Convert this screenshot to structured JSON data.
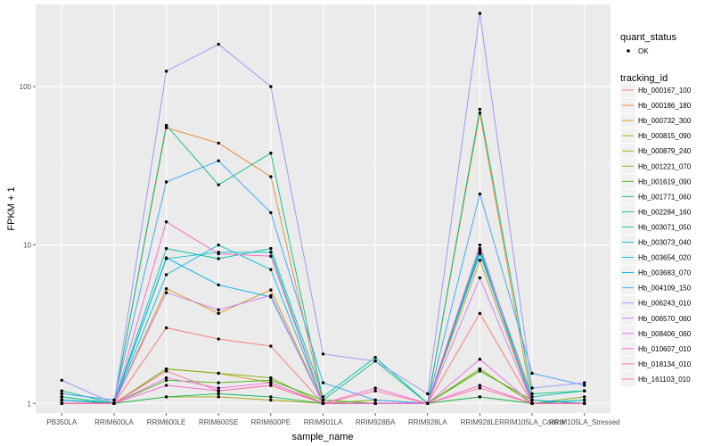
{
  "chart_data": {
    "type": "line",
    "xlabel": "sample_name",
    "ylabel": "FPKM + 1",
    "y_scale": "log10",
    "ylim": [
      0.87,
      330
    ],
    "y_ticks": [
      {
        "value": 1,
        "label": "1"
      },
      {
        "value": 10,
        "label": "10"
      },
      {
        "value": 100,
        "label": "100"
      }
    ],
    "categories": [
      "PB350LA",
      "RRIM600LA",
      "RRIM600LE",
      "RRIM600SE",
      "RRIM600PE",
      "RRIM901LA",
      "RRIM928BA",
      "RRIM928LA",
      "RRIM928LE",
      "RRIM105LA_Control",
      "RRIM105LA_Stressed"
    ],
    "grid": true,
    "legend_position": "right",
    "point_legend": {
      "title": "quant_status",
      "label": "OK"
    },
    "legend_title": "tracking_id",
    "series": [
      {
        "name": "Hb_000167_100",
        "color": "#F8766D",
        "values": [
          1.05,
          1.0,
          3.0,
          2.55,
          2.3,
          1.0,
          1.0,
          1.0,
          3.7,
          1.0,
          1.0
        ]
      },
      {
        "name": "Hb_000186_180",
        "color": "#EA8331",
        "values": [
          1.0,
          1.0,
          55,
          44,
          27,
          1.0,
          1.0,
          1.0,
          68,
          1.0,
          1.0
        ]
      },
      {
        "name": "Hb_000732_300",
        "color": "#D89000",
        "values": [
          1.0,
          1.0,
          5.3,
          3.7,
          5.2,
          1.0,
          1.0,
          1.0,
          8.0,
          1.0,
          1.0
        ]
      },
      {
        "name": "Hb_000815_090",
        "color": "#C09B00",
        "values": [
          1.0,
          1.0,
          1.65,
          1.55,
          1.35,
          1.0,
          1.0,
          1.0,
          1.65,
          1.0,
          1.0
        ]
      },
      {
        "name": "Hb_000879_240",
        "color": "#A3A500",
        "values": [
          1.05,
          1.0,
          1.1,
          1.1,
          1.05,
          1.0,
          1.0,
          1.0,
          1.1,
          1.0,
          1.0
        ]
      },
      {
        "name": "Hb_001221_070",
        "color": "#7CAE00",
        "values": [
          1.05,
          1.0,
          1.65,
          1.55,
          1.45,
          1.0,
          1.05,
          1.0,
          1.65,
          1.0,
          1.1
        ]
      },
      {
        "name": "Hb_001619_090",
        "color": "#39B600",
        "values": [
          1.1,
          1.0,
          1.4,
          1.35,
          1.4,
          1.05,
          1.0,
          1.0,
          1.6,
          1.05,
          1.0
        ]
      },
      {
        "name": "Hb_001771_060",
        "color": "#00BB4E",
        "values": [
          1.1,
          1.0,
          1.1,
          1.15,
          1.1,
          1.0,
          1.0,
          1.0,
          1.1,
          1.0,
          1.05
        ]
      },
      {
        "name": "Hb_002284_160",
        "color": "#00BF7D",
        "values": [
          1.2,
          1.0,
          57,
          24,
          38,
          1.05,
          1.85,
          1.0,
          72,
          1.15,
          1.2
        ]
      },
      {
        "name": "Hb_003071_050",
        "color": "#00C1A3",
        "values": [
          1.1,
          1.0,
          9.5,
          8.2,
          9.5,
          1.1,
          1.95,
          1.0,
          9.5,
          1.1,
          1.2
        ]
      },
      {
        "name": "Hb_003073_040",
        "color": "#00BFC4",
        "values": [
          1.05,
          1.0,
          8.2,
          9.0,
          9.0,
          1.0,
          1.0,
          1.0,
          9.2,
          1.0,
          1.05
        ]
      },
      {
        "name": "Hb_003654_020",
        "color": "#00BAE0",
        "values": [
          1.0,
          1.0,
          6.5,
          10,
          7.0,
          1.0,
          1.0,
          1.0,
          9.0,
          1.0,
          1.0
        ]
      },
      {
        "name": "Hb_003683_070",
        "color": "#00B0F6",
        "values": [
          1.05,
          1.0,
          8.3,
          5.6,
          4.7,
          1.0,
          1.0,
          1.0,
          8.8,
          1.05,
          1.0
        ]
      },
      {
        "name": "Hb_004109_150",
        "color": "#35A2FF",
        "values": [
          1.15,
          1.05,
          25,
          34,
          16,
          1.35,
          1.05,
          1.0,
          21,
          1.55,
          1.3
        ]
      },
      {
        "name": "Hb_006243_010",
        "color": "#9590FF",
        "values": [
          1.4,
          1.0,
          125,
          185,
          100,
          2.05,
          1.85,
          1.15,
          290,
          1.25,
          1.35
        ]
      },
      {
        "name": "Hb_006570_060",
        "color": "#C77CFF",
        "values": [
          1.0,
          1.0,
          5.0,
          3.9,
          4.8,
          1.0,
          1.0,
          1.0,
          6.2,
          1.0,
          1.0
        ]
      },
      {
        "name": "Hb_008406_060",
        "color": "#E76BF3",
        "values": [
          1.0,
          1.0,
          1.45,
          1.25,
          1.35,
          1.0,
          1.0,
          1.0,
          1.9,
          1.0,
          1.0
        ]
      },
      {
        "name": "Hb_010607_010",
        "color": "#FA62DB",
        "values": [
          1.0,
          1.0,
          1.3,
          1.2,
          1.3,
          1.0,
          1.25,
          1.0,
          1.3,
          1.0,
          1.0
        ]
      },
      {
        "name": "Hb_018134_010",
        "color": "#FF62BC",
        "values": [
          1.0,
          1.0,
          14,
          8.8,
          8.5,
          1.0,
          1.0,
          1.0,
          10,
          1.0,
          1.0
        ]
      },
      {
        "name": "Hb_161103_010",
        "color": "#FF6C91",
        "values": [
          1.0,
          1.0,
          1.6,
          1.2,
          1.3,
          1.0,
          1.2,
          1.0,
          1.25,
          1.0,
          1.0
        ]
      }
    ]
  }
}
